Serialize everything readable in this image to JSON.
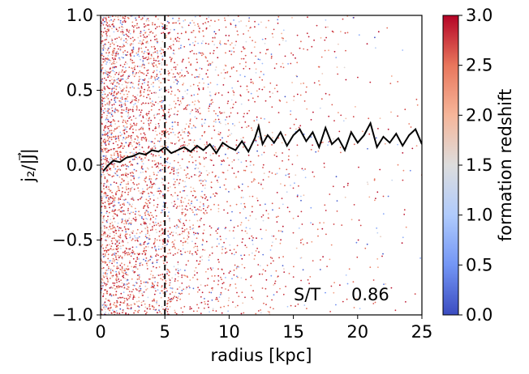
{
  "chart_data": {
    "type": "scatter",
    "title": "",
    "xlabel": "radius [kpc]",
    "ylabel": "j₂/|J⃗|",
    "xlim": [
      0,
      25
    ],
    "ylim": [
      -1.0,
      1.0
    ],
    "x_ticks": [
      "0",
      "5",
      "10",
      "15",
      "20",
      "25"
    ],
    "y_ticks": [
      "−1.0",
      "−0.5",
      "0.0",
      "0.5",
      "1.0"
    ],
    "grid": false,
    "colorbar": {
      "label": "formation redshift",
      "colormap": "coolwarm",
      "range": [
        0.0,
        3.0
      ],
      "ticks": [
        "0.0",
        "0.5",
        "1.0",
        "1.5",
        "2.0",
        "2.5",
        "3.0"
      ],
      "colors": [
        "#3b4cc0",
        "#7396f5",
        "#b0cbfc",
        "#dddddd",
        "#f6b69a",
        "#e8765c",
        "#b40426"
      ]
    },
    "scatter_description": "dense cloud of star particles colored by formation redshift, concentrated at small radii and thinning outward",
    "vline": {
      "x": 5,
      "style": "dashed",
      "color": "#000000"
    },
    "median_line": {
      "color": "#000000",
      "x": [
        0.2,
        0.6,
        1.0,
        1.5,
        2.0,
        2.5,
        3.0,
        3.5,
        4.0,
        4.5,
        5.0,
        5.5,
        6.0,
        6.5,
        7.0,
        7.5,
        8.0,
        8.5,
        9.0,
        9.5,
        10.0,
        10.5,
        11.0,
        11.5,
        12.0,
        12.3,
        12.6,
        13.0,
        13.5,
        14.0,
        14.5,
        15.0,
        15.5,
        16.0,
        16.5,
        17.0,
        17.5,
        18.0,
        18.5,
        19.0,
        19.5,
        20.0,
        20.5,
        21.0,
        21.5,
        22.0,
        22.5,
        23.0,
        23.5,
        24.0,
        24.5,
        25.0
      ],
      "y": [
        -0.04,
        0.0,
        0.03,
        0.02,
        0.05,
        0.06,
        0.08,
        0.07,
        0.1,
        0.09,
        0.12,
        0.08,
        0.1,
        0.12,
        0.09,
        0.13,
        0.1,
        0.14,
        0.08,
        0.15,
        0.12,
        0.1,
        0.16,
        0.09,
        0.18,
        0.26,
        0.14,
        0.2,
        0.15,
        0.22,
        0.13,
        0.2,
        0.24,
        0.16,
        0.22,
        0.12,
        0.25,
        0.14,
        0.18,
        0.1,
        0.22,
        0.15,
        0.2,
        0.28,
        0.12,
        0.19,
        0.15,
        0.21,
        0.13,
        0.2,
        0.24,
        0.14
      ]
    },
    "annotation": {
      "label": "S/T",
      "value": "0.86"
    }
  }
}
